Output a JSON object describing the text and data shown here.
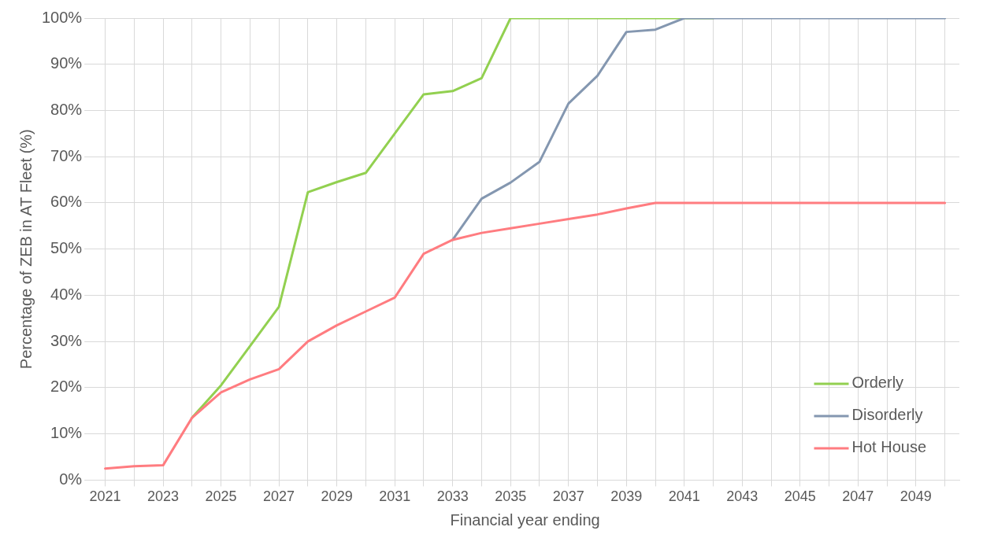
{
  "chart_data": {
    "type": "line",
    "xlabel": "Financial year ending",
    "ylabel": "Percentage of ZEB in AT Fleet (%)",
    "categories": [
      "2021",
      null,
      "2023",
      null,
      "2025",
      null,
      "2027",
      null,
      "2029",
      null,
      "2031",
      null,
      "2033",
      null,
      "2035",
      null,
      "2037",
      null,
      "2039",
      null,
      "2041",
      null,
      "2043",
      null,
      "2045",
      null,
      "2047",
      null,
      "2049",
      null
    ],
    "series": [
      {
        "name": "Orderly",
        "color": "#92d050",
        "values": [
          null,
          null,
          null,
          13.5,
          20.5,
          29,
          37.5,
          62.3,
          64.5,
          66.5,
          75,
          83.5,
          84.2,
          87,
          100,
          100,
          100,
          100,
          100,
          100,
          100,
          100,
          null,
          null,
          null,
          null,
          null,
          null,
          null,
          null
        ]
      },
      {
        "name": "Disorderly",
        "color": "#8497b0",
        "values": [
          null,
          null,
          null,
          null,
          null,
          null,
          null,
          null,
          null,
          null,
          null,
          null,
          52,
          60.9,
          64.4,
          68.9,
          81.5,
          87.5,
          97,
          97.5,
          100,
          100,
          100,
          100,
          100,
          100,
          100,
          100,
          100,
          100
        ]
      },
      {
        "name": "Hot House",
        "color": "#ff7c80",
        "values": [
          2.5,
          3,
          3.2,
          13.5,
          19,
          21.8,
          24,
          30,
          33.5,
          36.5,
          39.5,
          49,
          52,
          53.5,
          54.5,
          55.5,
          56.5,
          57.5,
          58.8,
          60,
          60,
          60,
          60,
          60,
          60,
          60,
          60,
          60,
          60,
          60
        ]
      }
    ],
    "ylim": [
      0,
      100
    ],
    "yticks": [
      {
        "value": 0,
        "label": "0%"
      },
      {
        "value": 10,
        "label": "10%"
      },
      {
        "value": 20,
        "label": "20%"
      },
      {
        "value": 30,
        "label": "30%"
      },
      {
        "value": 40,
        "label": "40%"
      },
      {
        "value": 50,
        "label": "50%"
      },
      {
        "value": 60,
        "label": "60%"
      },
      {
        "value": 70,
        "label": "70%"
      },
      {
        "value": 80,
        "label": "80%"
      },
      {
        "value": 90,
        "label": "90%"
      },
      {
        "value": 100,
        "label": "100%"
      }
    ],
    "grid": true,
    "legend": "bottom right",
    "marker": "none",
    "line_style": "solid"
  }
}
